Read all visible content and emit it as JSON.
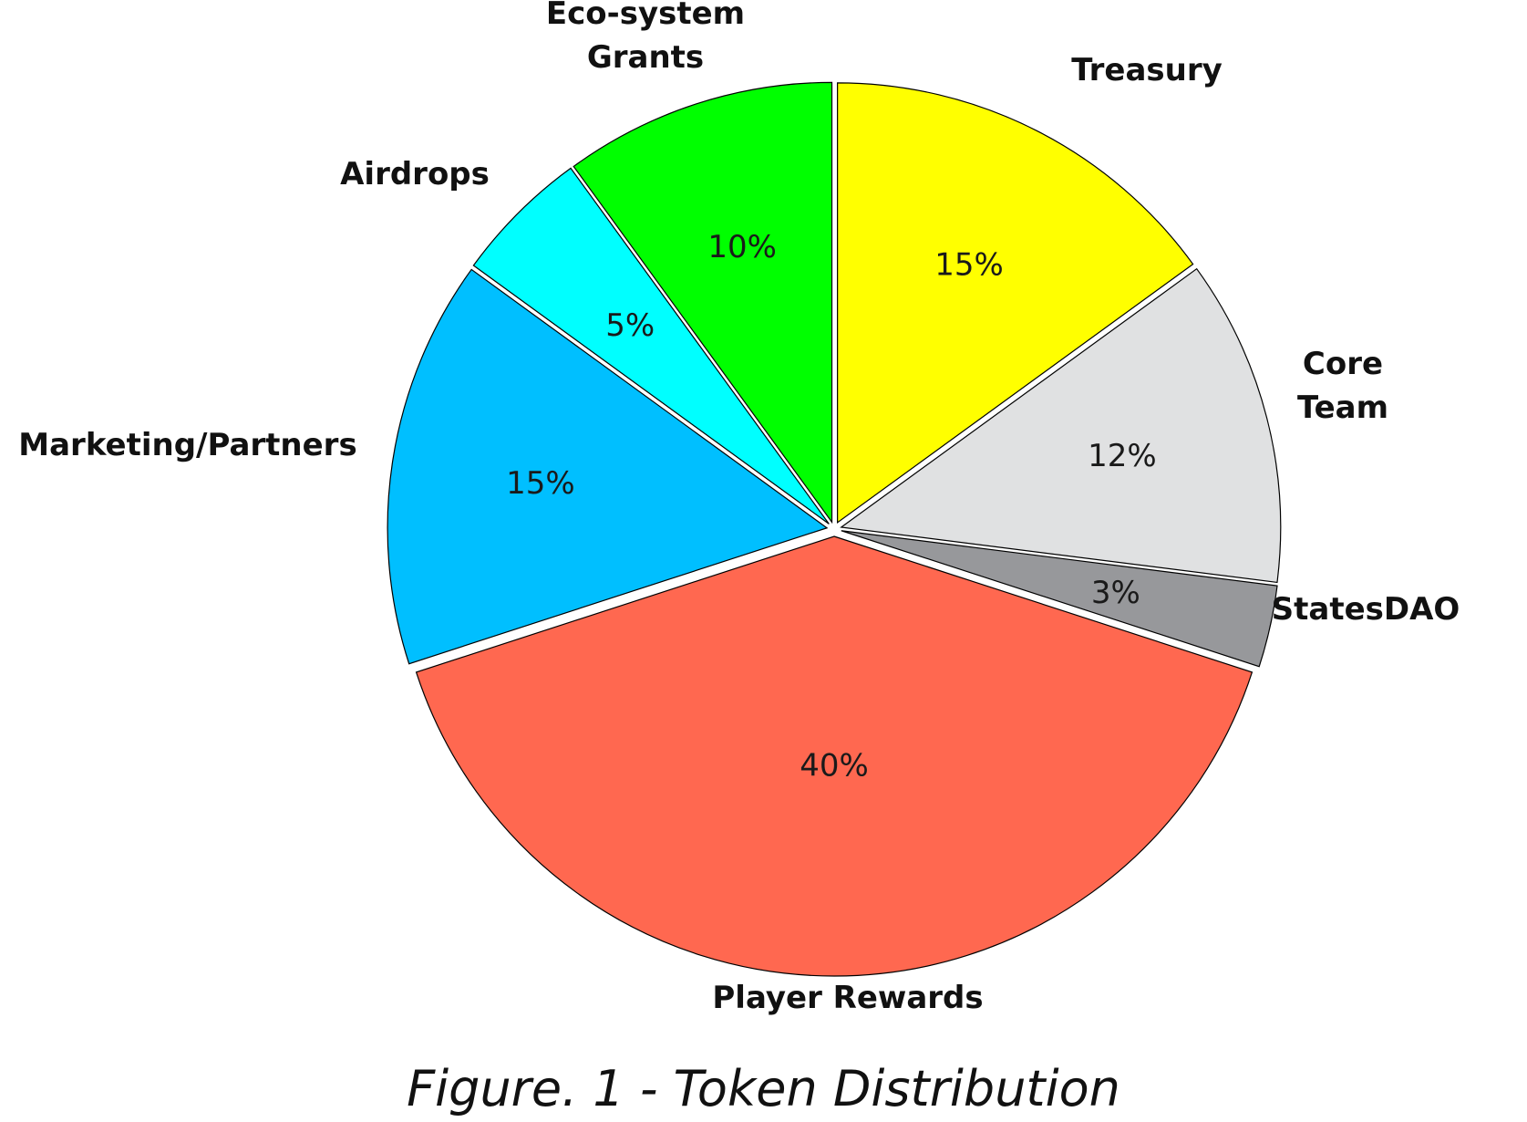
{
  "figure": {
    "caption": "Figure. 1 - Token Distribution"
  },
  "chart_data": {
    "type": "pie",
    "slices": [
      {
        "label": "Treasury",
        "label_lines": [
          "Treasury"
        ],
        "value": 15,
        "pct_label": "15%",
        "color": "#ffff00"
      },
      {
        "label": "Core Team",
        "label_lines": [
          "Core",
          "Team"
        ],
        "value": 12,
        "pct_label": "12%",
        "color": "#e0e1e2"
      },
      {
        "label": "StatesDAO",
        "label_lines": [
          "StatesDAO"
        ],
        "value": 3,
        "pct_label": "3%",
        "color": "#97989b"
      },
      {
        "label": "Player Rewards",
        "label_lines": [
          "Player Rewards"
        ],
        "value": 40,
        "pct_label": "40%",
        "color": "#ff6850"
      },
      {
        "label": "Marketing/Partners",
        "label_lines": [
          "Marketing/Partners"
        ],
        "value": 15,
        "pct_label": "15%",
        "color": "#00bfff"
      },
      {
        "label": "Airdrops",
        "label_lines": [
          "Airdrops"
        ],
        "value": 5,
        "pct_label": "5%",
        "color": "#00ffff"
      },
      {
        "label": "Eco-system Grants",
        "label_lines": [
          "Eco-system",
          "Grants"
        ],
        "value": 10,
        "pct_label": "10%",
        "color": "#00ff00"
      }
    ],
    "start": "top",
    "direction": "clockwise",
    "exploded": true
  }
}
